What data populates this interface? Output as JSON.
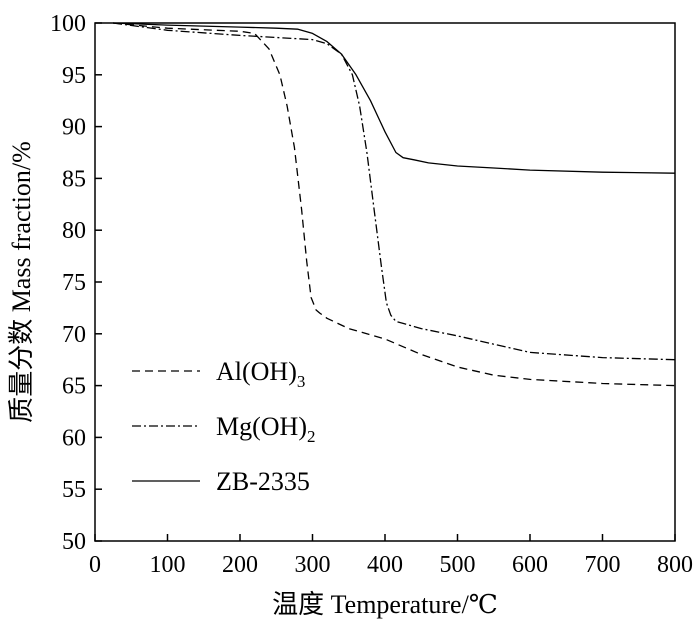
{
  "chart_data": {
    "type": "line",
    "xlabel": "温度 Temperature/℃",
    "ylabel": "质量分数 Mass fraction/%",
    "xlim": [
      0,
      800
    ],
    "ylim": [
      50,
      100
    ],
    "xticks": [
      0,
      100,
      200,
      300,
      400,
      500,
      600,
      700,
      800
    ],
    "yticks": [
      50,
      55,
      60,
      65,
      70,
      75,
      80,
      85,
      90,
      95,
      100
    ],
    "grid": false,
    "legend_position": "bottom-left",
    "series": [
      {
        "name": "Al(OH)3",
        "name_main": "Al(OH)",
        "name_sub": "3",
        "dash": "dashed",
        "x": [
          25,
          100,
          200,
          220,
          240,
          255,
          265,
          275,
          285,
          292,
          298,
          305,
          310,
          320,
          350,
          400,
          450,
          500,
          550,
          600,
          700,
          800
        ],
        "y": [
          100,
          99.5,
          99.2,
          99.0,
          97.5,
          95.0,
          92.0,
          88.0,
          82.0,
          77.0,
          73.5,
          72.3,
          72.0,
          71.5,
          70.5,
          69.5,
          68.0,
          66.8,
          66.0,
          65.6,
          65.2,
          65.0
        ]
      },
      {
        "name": "Mg(OH)2",
        "name_main": "Mg(OH)",
        "name_sub": "2",
        "dash": "dashdot",
        "x": [
          25,
          100,
          200,
          250,
          300,
          320,
          340,
          355,
          365,
          375,
          385,
          395,
          402,
          408,
          415,
          425,
          450,
          500,
          550,
          600,
          700,
          800
        ],
        "y": [
          100,
          99.3,
          98.8,
          98.6,
          98.4,
          98.0,
          97.0,
          95.0,
          92.0,
          87.5,
          82.0,
          76.5,
          73.0,
          71.8,
          71.2,
          71.0,
          70.5,
          69.8,
          69.0,
          68.2,
          67.7,
          67.5
        ]
      },
      {
        "name": "ZB-2335",
        "name_main": "ZB-2335",
        "name_sub": "",
        "dash": "solid",
        "x": [
          25,
          100,
          200,
          250,
          280,
          300,
          320,
          340,
          360,
          380,
          400,
          415,
          425,
          440,
          460,
          500,
          550,
          600,
          700,
          800
        ],
        "y": [
          100,
          99.8,
          99.6,
          99.5,
          99.4,
          99.0,
          98.2,
          97.0,
          95.0,
          92.5,
          89.5,
          87.5,
          87.0,
          86.8,
          86.5,
          86.2,
          86.0,
          85.8,
          85.6,
          85.5
        ]
      }
    ]
  }
}
